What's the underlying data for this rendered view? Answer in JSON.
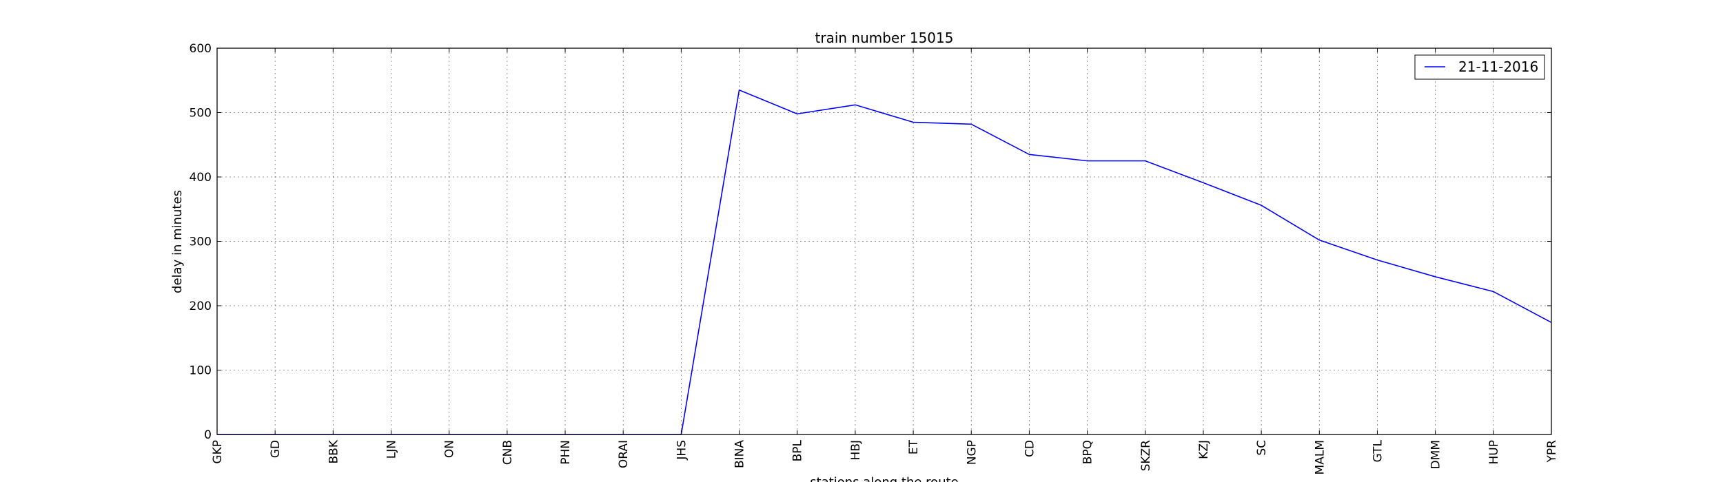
{
  "chart_data": {
    "type": "line",
    "title": "train number 15015",
    "xlabel": "stations along the route",
    "ylabel": "delay in minutes",
    "categories": [
      "GKP",
      "GD",
      "BBK",
      "LJN",
      "ON",
      "CNB",
      "PHN",
      "ORAI",
      "JHS",
      "BINA",
      "BPL",
      "HBJ",
      "ET",
      "NGP",
      "CD",
      "BPQ",
      "SKZR",
      "KZJ",
      "SC",
      "MALM",
      "GTL",
      "DMM",
      "HUP",
      "YPR"
    ],
    "series": [
      {
        "name": "21-11-2016",
        "color": "#0000ff",
        "values": [
          0,
          0,
          0,
          0,
          0,
          0,
          0,
          0,
          0,
          535,
          498,
          512,
          485,
          482,
          435,
          425,
          425,
          391,
          356,
          302,
          271,
          245,
          222,
          174
        ]
      }
    ],
    "ylim": [
      0,
      600
    ],
    "yticks": [
      0,
      100,
      200,
      300,
      400,
      500,
      600
    ],
    "grid": true,
    "legend_position": "top-right"
  }
}
